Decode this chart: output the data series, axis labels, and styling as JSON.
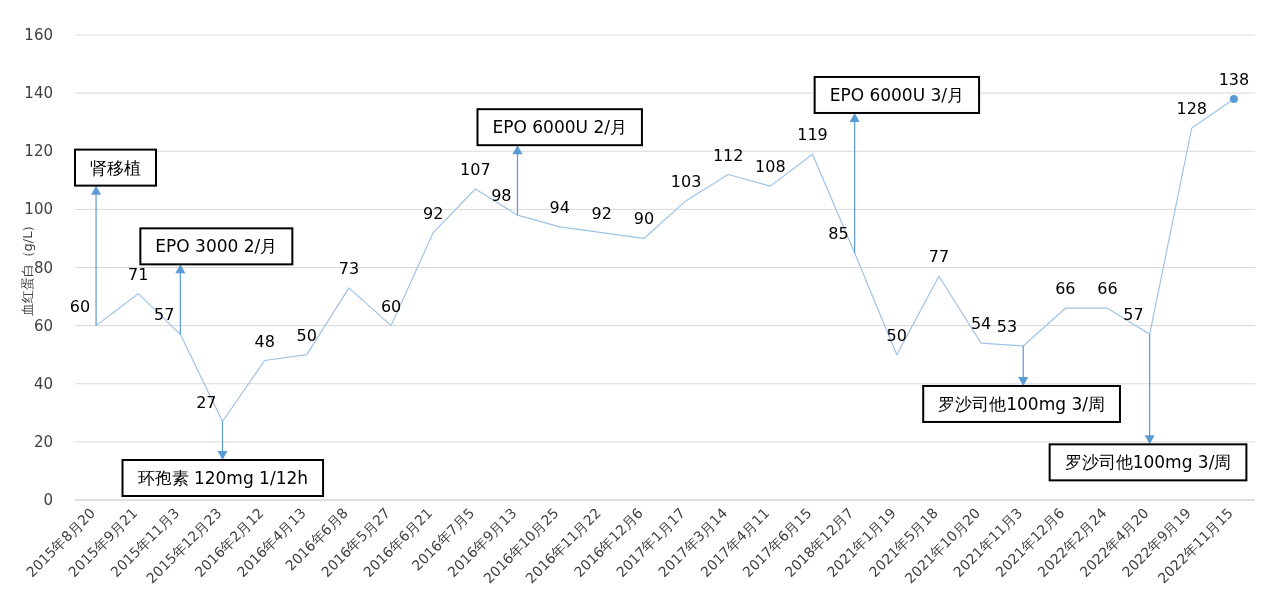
{
  "chart_data": {
    "type": "line",
    "ylabel": "血红蛋白（g/L）",
    "categories": [
      "2015年8月20",
      "2015年9月21",
      "2015年11月3",
      "2015年12月23",
      "2016年2月12",
      "2016年4月13",
      "2016年6月8",
      "2016年5月27",
      "2016年6月21",
      "2016年7月5",
      "2016年9月13",
      "2016年10月25",
      "2016年11月22",
      "2016年12月6",
      "2017年1月17",
      "2017年3月14",
      "2017年4月11",
      "2017年6月15",
      "2018年12月7",
      "2021年1月19",
      "2021年5月18",
      "2021年10月20",
      "2021年11月3",
      "2021年12月6",
      "2022年2月24",
      "2022年4月20",
      "2022年9月19",
      "2022年11月15"
    ],
    "series": [
      {
        "color": "#9dc3e6",
        "values": [
          60,
          71,
          57,
          27,
          48,
          50,
          73,
          60,
          92,
          107,
          98,
          94,
          92,
          90,
          103,
          112,
          108,
          119,
          85,
          50,
          77,
          54,
          53,
          66,
          66,
          57,
          128,
          138
        ],
        "value_labels": [
          "60",
          "71",
          "57",
          "27",
          "48",
          "50",
          "73",
          "60",
          "92",
          "107",
          "98",
          "94",
          "92",
          "90",
          "103",
          "112",
          "108",
          "119",
          "85",
          "50",
          "77",
          "54",
          "53",
          "66",
          "66",
          "57",
          "128",
          null
        ]
      },
      {
        "type": "scatter",
        "color": "#5b9bd5",
        "x": [
          "2022年11月15"
        ],
        "values": [
          138
        ],
        "value_labels": [
          "138"
        ]
      }
    ],
    "ylim": [
      0,
      160
    ],
    "yticks": [
      0,
      20,
      40,
      60,
      80,
      100,
      120,
      140,
      160
    ],
    "grid": "y",
    "annotations": [
      {
        "text": "肾移植",
        "x": "2015年8月20",
        "y": 60
      },
      {
        "text": "EPO 3000 2/月",
        "x": "2015年11月3",
        "y": 57
      },
      {
        "text": "环孢素 120mg 1/12h",
        "x": "2015年12月23",
        "y": 27
      },
      {
        "text": "EPO 6000U 2/月",
        "x": "2016年9月13",
        "y": 98
      },
      {
        "text": "EPO 6000U 3/月",
        "x": "2018年12月7",
        "y": 85
      },
      {
        "text": "罗沙司他100mg 3/周",
        "x": "2021年11月3",
        "y": 53
      },
      {
        "text": "罗沙司他100mg 3/周",
        "x": "2022年4月20",
        "y": 57
      }
    ]
  }
}
